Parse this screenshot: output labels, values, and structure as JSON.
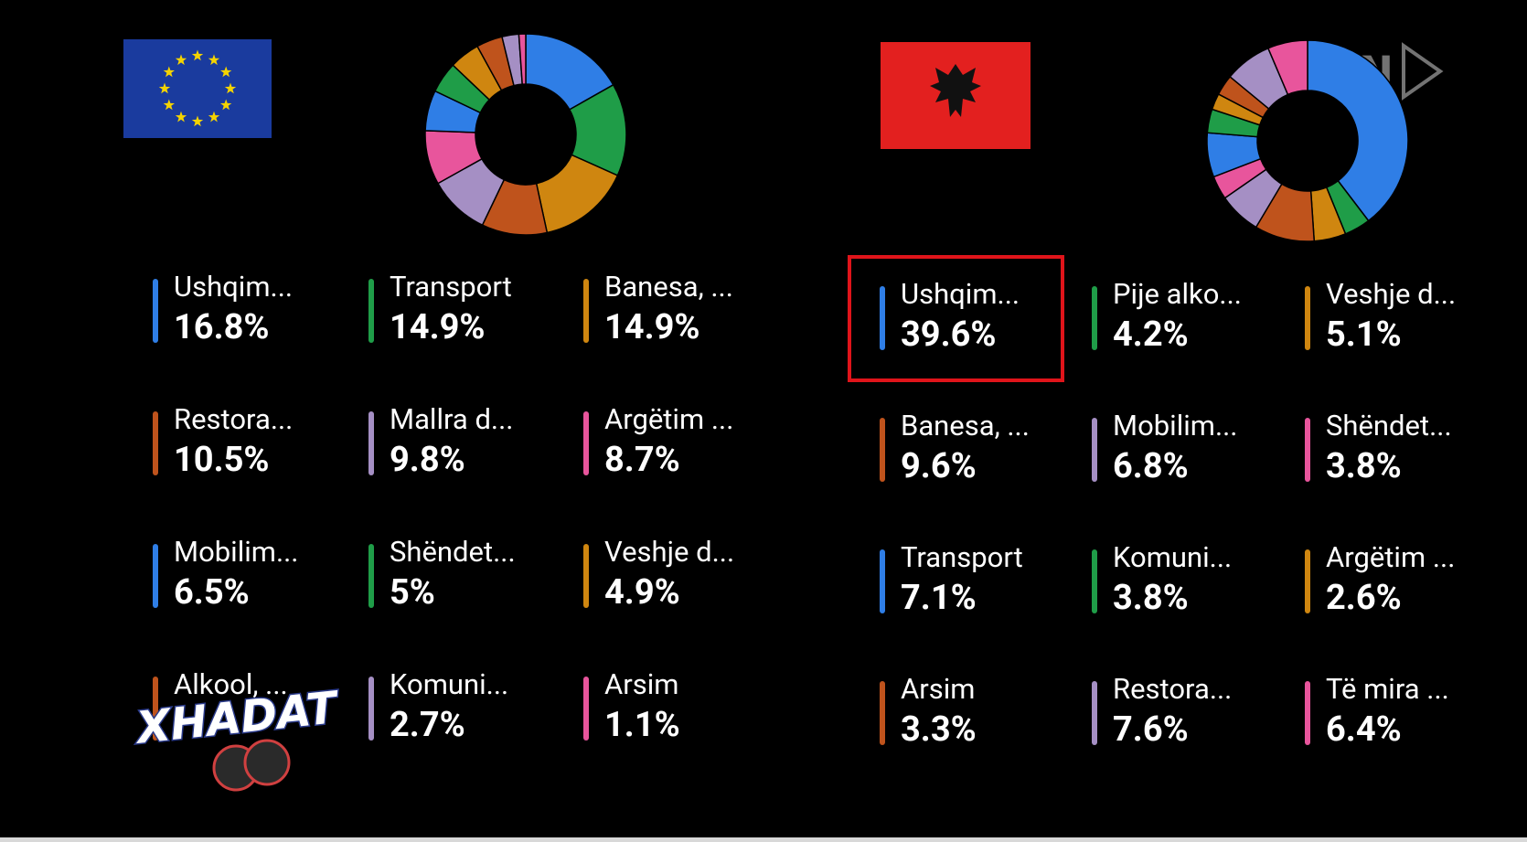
{
  "chart_data": [
    {
      "type": "pie",
      "categories": [
        "Ushqim...",
        "Transport",
        "Banesa, ...",
        "Restora...",
        "Mallra d...",
        "Argëtim ...",
        "Mobilim...",
        "Shëndet...",
        "Veshje d...",
        "Alkool, ...",
        "Komuni...",
        "Arsim"
      ],
      "values": [
        16.8,
        14.9,
        14.9,
        10.5,
        9.8,
        8.7,
        6.5,
        5,
        4.9,
        4.2,
        2.7,
        1.1
      ],
      "value_labels": [
        "16.8%",
        "14.9%",
        "14.9%",
        "10.5%",
        "9.8%",
        "8.7%",
        "6.5%",
        "5%",
        "4.9%",
        null,
        "2.7%",
        "1.1%"
      ],
      "colors": [
        "#2f7ee6",
        "#1f9d48",
        "#cf8610",
        "#bf531c",
        "#a58fc4",
        "#e8559c",
        "#2f7ee6",
        "#1f9d48",
        "#cf8610",
        "#bf531c",
        "#a58fc4",
        "#e8559c"
      ]
    },
    {
      "type": "pie",
      "categories": [
        "Ushqim...",
        "Pije alko...",
        "Veshje d...",
        "Banesa, ...",
        "Mobilim...",
        "Shëndet...",
        "Transport",
        "Komuni...",
        "Argëtim ...",
        "Arsim",
        "Restora...",
        "Të mira ..."
      ],
      "values": [
        39.6,
        4.2,
        5.1,
        9.6,
        6.8,
        3.8,
        7.1,
        3.8,
        2.6,
        3.3,
        7.6,
        6.4
      ],
      "value_labels": [
        "39.6%",
        "4.2%",
        "5.1%",
        "9.6%",
        "6.8%",
        "3.8%",
        "7.1%",
        "3.8%",
        "2.6%",
        "3.3%",
        "7.6%",
        "6.4%"
      ],
      "colors": [
        "#2f7ee6",
        "#1f9d48",
        "#cf8610",
        "#bf531c",
        "#a58fc4",
        "#e8559c",
        "#2f7ee6",
        "#1f9d48",
        "#cf8610",
        "#bf531c",
        "#a58fc4",
        "#e8559c"
      ]
    }
  ],
  "overlays": {
    "watermark": "MCN",
    "logo": "XHADAT"
  }
}
